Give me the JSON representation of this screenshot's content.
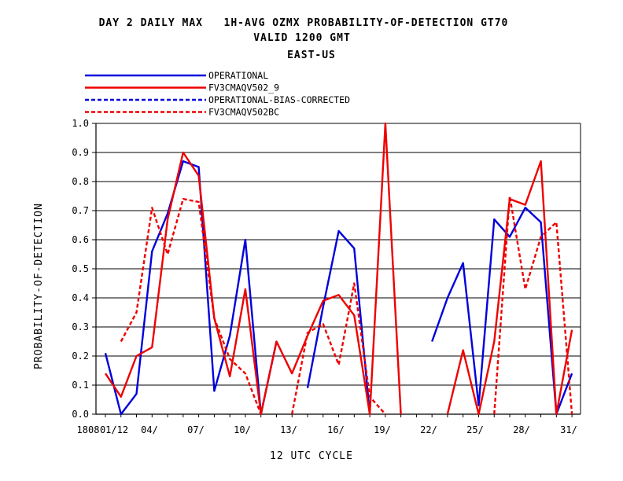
{
  "header": {
    "line1": "DAY 2 DAILY MAX   1H-AVG OZMX PROBABILITY-OF-DETECTION GT70",
    "line2": "VALID 1200 GMT",
    "line3": "EAST-US"
  },
  "chart_data": {
    "type": "line",
    "xlabel": "12 UTC CYCLE",
    "ylabel": "PROBABILITY-OF-DETECTION",
    "ylim": [
      0,
      1
    ],
    "y_ticks": [
      "0.0",
      "0.1",
      "0.2",
      "0.3",
      "0.4",
      "0.5",
      "0.6",
      "0.7",
      "0.8",
      "0.9",
      "1.0"
    ],
    "x_ticks": [
      "1808",
      "01/12",
      "04/",
      "07/",
      "10/",
      "13/",
      "16/",
      "19/",
      "22/",
      "25/",
      "28/",
      "31/"
    ],
    "x_tick_days": [
      1,
      4,
      7,
      10,
      13,
      16,
      19,
      22,
      25,
      28,
      31
    ],
    "grid": "horizontal",
    "legend_position": "top-left",
    "days": [
      1,
      2,
      3,
      4,
      5,
      6,
      7,
      8,
      9,
      10,
      11,
      12,
      13,
      14,
      15,
      16,
      17,
      18,
      19,
      20,
      21,
      22,
      23,
      24,
      25,
      26,
      27,
      28,
      29,
      30,
      31
    ],
    "series": [
      {
        "name": "OPERATIONAL",
        "color": "#0000dd",
        "dash": "solid",
        "values": [
          0.21,
          0.0,
          0.07,
          0.56,
          0.69,
          0.87,
          0.85,
          0.08,
          0.27,
          0.6,
          0.0,
          0.25,
          null,
          0.09,
          0.37,
          0.63,
          0.57,
          0.0,
          null,
          null,
          null,
          0.25,
          0.4,
          0.52,
          0.03,
          0.67,
          0.61,
          0.71,
          0.66,
          0.0,
          0.14
        ]
      },
      {
        "name": "FV3CMAQV502_9",
        "color": "#ee0000",
        "dash": "solid",
        "values": [
          0.14,
          0.06,
          0.2,
          0.23,
          0.67,
          0.9,
          0.82,
          0.33,
          0.13,
          0.43,
          0.0,
          0.25,
          0.14,
          0.27,
          0.39,
          0.41,
          0.34,
          0.0,
          1.0,
          0.0,
          null,
          null,
          0.0,
          0.22,
          0.0,
          0.25,
          0.74,
          0.72,
          0.87,
          0.0,
          0.29
        ]
      },
      {
        "name": "OPERATIONAL-BIAS-CORRECTED",
        "color": "#0000dd",
        "dash": "dashed",
        "values": []
      },
      {
        "name": "FV3CMAQV502BC",
        "color": "#ee0000",
        "dash": "dashed",
        "values": [
          null,
          0.25,
          0.35,
          0.71,
          0.55,
          0.74,
          0.73,
          0.33,
          0.19,
          0.14,
          0.0,
          null,
          0.0,
          0.28,
          0.31,
          0.17,
          0.45,
          0.06,
          0.0,
          null,
          null,
          null,
          null,
          null,
          null,
          0.0,
          0.75,
          0.43,
          0.61,
          0.66,
          0.0
        ]
      }
    ]
  }
}
